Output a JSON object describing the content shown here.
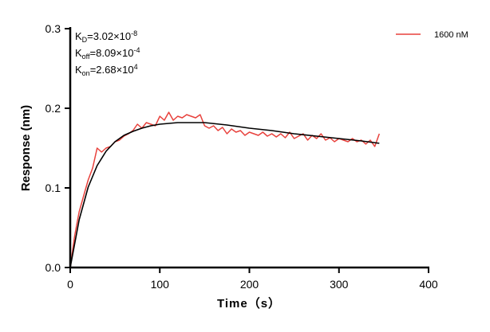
{
  "chart_data": {
    "type": "line",
    "title": "",
    "xlabel": "Time（s）",
    "ylabel": "Response (nm)",
    "xlim": [
      0,
      400
    ],
    "ylim": [
      0,
      0.3
    ],
    "xticks": [
      "0",
      "100",
      "200",
      "300",
      "400"
    ],
    "yticks": [
      "0.0",
      "0.1",
      "0.2",
      "0.3"
    ],
    "grid": false,
    "legend_placement": "top-right",
    "annotations": {
      "kd": {
        "base": "K",
        "sub": "D",
        "value": "=3.02×10",
        "exp": "-8"
      },
      "koff": {
        "base": "K",
        "sub": "off",
        "value": "=8.09×10",
        "exp": "-4"
      },
      "kon": {
        "base": "K",
        "sub": "on",
        "value": "=2.68×10",
        "exp": "4"
      }
    },
    "series": [
      {
        "name": "1600 nM",
        "color": "#e8413c",
        "x": [
          0,
          5,
          10,
          15,
          20,
          25,
          30,
          35,
          40,
          45,
          50,
          55,
          60,
          65,
          70,
          75,
          80,
          85,
          90,
          95,
          100,
          105,
          110,
          115,
          120,
          125,
          130,
          135,
          140,
          145,
          150,
          155,
          160,
          165,
          170,
          175,
          180,
          185,
          190,
          195,
          200,
          205,
          210,
          215,
          220,
          225,
          230,
          235,
          240,
          245,
          250,
          255,
          260,
          265,
          270,
          275,
          280,
          285,
          290,
          295,
          300,
          305,
          310,
          315,
          320,
          325,
          330,
          335,
          340,
          345
        ],
        "y": [
          0,
          0.04,
          0.07,
          0.09,
          0.11,
          0.125,
          0.15,
          0.145,
          0.15,
          0.152,
          0.158,
          0.16,
          0.165,
          0.168,
          0.172,
          0.18,
          0.175,
          0.182,
          0.18,
          0.178,
          0.19,
          0.185,
          0.195,
          0.185,
          0.19,
          0.188,
          0.192,
          0.19,
          0.188,
          0.192,
          0.178,
          0.175,
          0.178,
          0.172,
          0.176,
          0.168,
          0.174,
          0.17,
          0.172,
          0.166,
          0.17,
          0.168,
          0.166,
          0.17,
          0.165,
          0.168,
          0.164,
          0.168,
          0.163,
          0.17,
          0.162,
          0.165,
          0.168,
          0.16,
          0.166,
          0.162,
          0.168,
          0.16,
          0.163,
          0.158,
          0.162,
          0.16,
          0.158,
          0.162,
          0.158,
          0.16,
          0.155,
          0.16,
          0.152,
          0.168
        ]
      },
      {
        "color": "#000000",
        "x": [
          0,
          10,
          20,
          30,
          40,
          50,
          60,
          70,
          80,
          90,
          100,
          110,
          120,
          130,
          140,
          150,
          175,
          200,
          225,
          250,
          275,
          300,
          325,
          345
        ],
        "y": [
          0,
          0.06,
          0.101,
          0.128,
          0.146,
          0.158,
          0.166,
          0.171,
          0.175,
          0.178,
          0.18,
          0.181,
          0.182,
          0.182,
          0.182,
          0.182,
          0.179,
          0.175,
          0.172,
          0.168,
          0.165,
          0.162,
          0.159,
          0.156
        ]
      }
    ]
  }
}
